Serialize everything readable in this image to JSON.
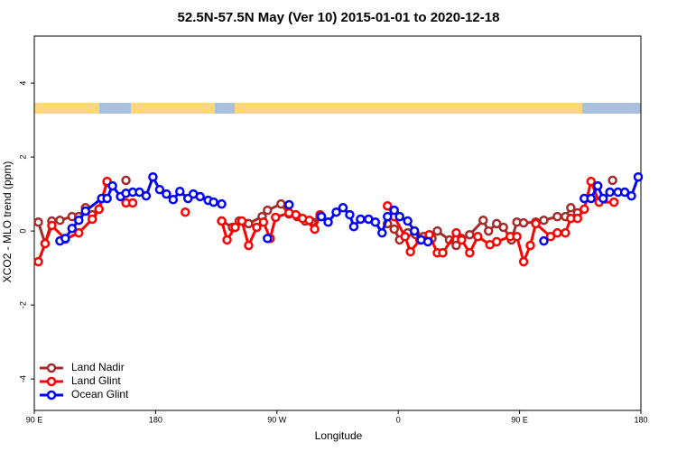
{
  "chart_data": {
    "type": "line",
    "title": "52.5N-57.5N May (Ver 10)   2015-01-01 to 2020-12-18",
    "xlabel": "Longitude",
    "ylabel": "XCO2 - MLO trend (ppm)",
    "xlim": [
      90,
      540
    ],
    "ylim": [
      -4.85,
      5.27
    ],
    "xticks": [
      {
        "value": 90,
        "label": "90 E"
      },
      {
        "value": 180,
        "label": "180"
      },
      {
        "value": 270,
        "label": "90 W"
      },
      {
        "value": 360,
        "label": "0"
      },
      {
        "value": 450,
        "label": "90 E"
      },
      {
        "value": 540,
        "label": "180"
      }
    ],
    "yticks": [
      -4,
      -2,
      0,
      2,
      4
    ],
    "legend": "bottom-left",
    "series": [
      {
        "name": "Land Nadir",
        "color": "#a52a2a",
        "x": [
          93,
          98,
          103,
          109,
          118,
          123,
          128,
          133,
          138,
          144,
          null,
          158,
          null,
          229,
          237,
          242,
          249,
          259,
          263,
          273,
          279,
          285,
          291,
          296,
          302,
          null,
          352,
          357,
          361,
          367,
          373,
          379,
          385,
          389,
          398,
          403,
          407,
          413,
          423,
          427,
          433,
          438,
          444,
          448,
          453,
          462,
          468,
          478,
          484,
          488,
          493,
          null,
          519
        ],
        "values": [
          0.24,
          -0.34,
          0.27,
          0.29,
          0.39,
          0.39,
          0.63,
          0.44,
          0.59,
          1.32,
          null,
          1.37,
          null,
          0.27,
          0.1,
          0.27,
          0.2,
          0.39,
          0.56,
          0.73,
          0.46,
          0.39,
          0.27,
          0.24,
          0.39,
          null,
          0.2,
          0.05,
          -0.24,
          -0.05,
          -0.1,
          -0.15,
          -0.2,
          0,
          -0.24,
          -0.39,
          -0.2,
          -0.1,
          0.29,
          0,
          0.2,
          0.1,
          -0.24,
          0.24,
          0.22,
          0.24,
          0.29,
          0.39,
          0.39,
          0.63,
          0.49,
          null,
          1.37
        ]
      },
      {
        "name": "Land Glint",
        "color": "#ff0000",
        "x": [
          93,
          98,
          103,
          113,
          123,
          133,
          138,
          144,
          null,
          158,
          163,
          null,
          202,
          null,
          229,
          233,
          239,
          244,
          249,
          255,
          260,
          265,
          269,
          279,
          284,
          289,
          294,
          298,
          302,
          null,
          352,
          357,
          365,
          369,
          376,
          383,
          389,
          393,
          403,
          407,
          413,
          419,
          428,
          433,
          443,
          448,
          453,
          458,
          462,
          473,
          478,
          484,
          488,
          493,
          498,
          503,
          509,
          520
        ],
        "values": [
          -0.83,
          -0.34,
          0.15,
          -0.22,
          -0.05,
          0.32,
          0.59,
          1.34,
          null,
          0.76,
          0.76,
          null,
          0.51,
          null,
          0.27,
          -0.24,
          0.1,
          0.27,
          -0.39,
          0.1,
          0.24,
          -0.2,
          0.37,
          0.49,
          0.44,
          0.34,
          0.29,
          0.05,
          0.44,
          null,
          0.68,
          0.39,
          -0.15,
          -0.56,
          -0.24,
          -0.1,
          -0.59,
          -0.59,
          -0.05,
          -0.24,
          -0.59,
          -0.15,
          -0.37,
          -0.29,
          -0.15,
          -0.15,
          -0.83,
          -0.39,
          0.2,
          -0.15,
          -0.05,
          -0.05,
          0.34,
          0.34,
          0.59,
          1.34,
          0.78,
          0.78
        ]
      },
      {
        "name": "Ocean Glint",
        "color": "#0000ff",
        "x": [
          109,
          113,
          118,
          123,
          128,
          140,
          144,
          148,
          154,
          158,
          163,
          168,
          173,
          178,
          183,
          188,
          193,
          198,
          204,
          208,
          213,
          219,
          223,
          229,
          null,
          263,
          null,
          279,
          null,
          303,
          308,
          314,
          319,
          324,
          327,
          332,
          338,
          343,
          348,
          352,
          357,
          361,
          367,
          372,
          377,
          382,
          null,
          468,
          null,
          498,
          503,
          508,
          512,
          517,
          523,
          528,
          533,
          538
        ],
        "values": [
          -0.27,
          -0.2,
          0.07,
          0.29,
          0.54,
          0.88,
          0.88,
          1.22,
          0.93,
          1.02,
          1.05,
          1.05,
          0.95,
          1.46,
          1.12,
          1.0,
          0.85,
          1.07,
          0.88,
          1.0,
          0.93,
          0.83,
          0.78,
          0.73,
          null,
          -0.2,
          null,
          0.71,
          null,
          0.39,
          0.24,
          0.51,
          0.63,
          0.44,
          0.12,
          0.32,
          0.32,
          0.24,
          -0.05,
          0.39,
          0.56,
          0.39,
          0.27,
          0,
          -0.24,
          -0.29,
          null,
          -0.27,
          null,
          0.88,
          0.88,
          1.22,
          0.88,
          1.05,
          1.05,
          1.05,
          0.95,
          1.46
        ]
      }
    ]
  }
}
